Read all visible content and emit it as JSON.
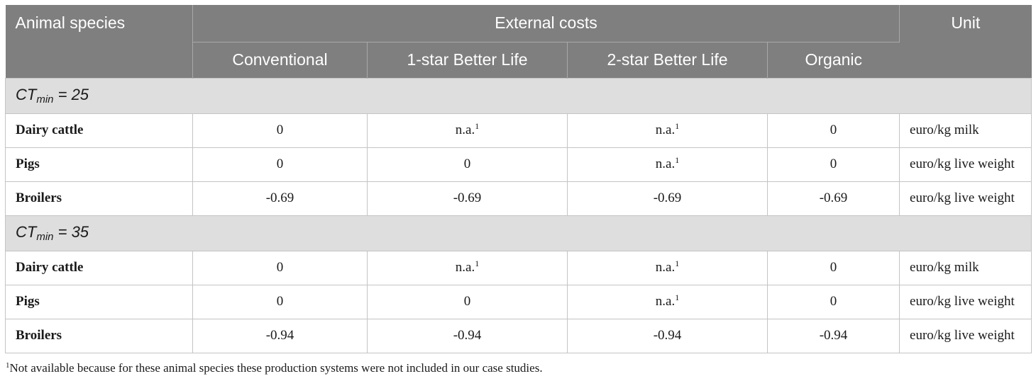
{
  "header": {
    "species_label": "Animal species",
    "external_costs_label": "External costs",
    "unit_label": "Unit",
    "columns": [
      "Conventional",
      "1-star Better Life",
      "2-star Better Life",
      "Organic"
    ]
  },
  "sections": [
    {
      "label_prefix": "CT",
      "label_sub": "min",
      "label_suffix": " = 25",
      "rows": [
        {
          "species": "Dairy cattle",
          "values": [
            {
              "v": "0",
              "fn": ""
            },
            {
              "v": "n.a.",
              "fn": "1"
            },
            {
              "v": "n.a.",
              "fn": "1"
            },
            {
              "v": "0",
              "fn": ""
            }
          ],
          "unit": "euro/kg milk"
        },
        {
          "species": "Pigs",
          "values": [
            {
              "v": "0",
              "fn": ""
            },
            {
              "v": "0",
              "fn": ""
            },
            {
              "v": "n.a.",
              "fn": "1"
            },
            {
              "v": "0",
              "fn": ""
            }
          ],
          "unit": "euro/kg live weight"
        },
        {
          "species": "Broilers",
          "values": [
            {
              "v": "-0.69",
              "fn": ""
            },
            {
              "v": "-0.69",
              "fn": ""
            },
            {
              "v": "-0.69",
              "fn": ""
            },
            {
              "v": "-0.69",
              "fn": ""
            }
          ],
          "unit": "euro/kg live weight"
        }
      ]
    },
    {
      "label_prefix": "CT",
      "label_sub": "min",
      "label_suffix": " = 35",
      "rows": [
        {
          "species": "Dairy cattle",
          "values": [
            {
              "v": "0",
              "fn": ""
            },
            {
              "v": "n.a.",
              "fn": "1"
            },
            {
              "v": "n.a.",
              "fn": "1"
            },
            {
              "v": "0",
              "fn": ""
            }
          ],
          "unit": "euro/kg milk"
        },
        {
          "species": "Pigs",
          "values": [
            {
              "v": "0",
              "fn": ""
            },
            {
              "v": "0",
              "fn": ""
            },
            {
              "v": "n.a.",
              "fn": "1"
            },
            {
              "v": "0",
              "fn": ""
            }
          ],
          "unit": "euro/kg live weight"
        },
        {
          "species": "Broilers",
          "values": [
            {
              "v": "-0.94",
              "fn": ""
            },
            {
              "v": "-0.94",
              "fn": ""
            },
            {
              "v": "-0.94",
              "fn": ""
            },
            {
              "v": "-0.94",
              "fn": ""
            }
          ],
          "unit": "euro/kg live weight"
        }
      ]
    }
  ],
  "footnote": {
    "marker": "1",
    "text": "Not available because for these animal species these production systems were not included in our case studies."
  }
}
